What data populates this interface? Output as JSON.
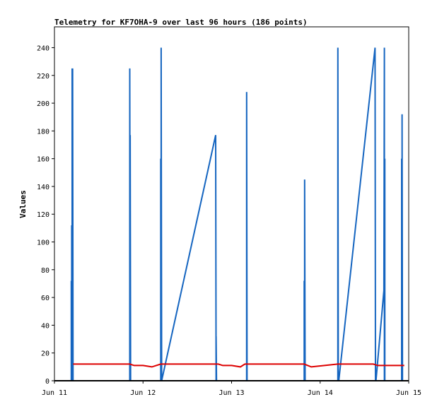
{
  "chart_data": {
    "type": "line",
    "title": "Telemetry for KF7OHA-9 over last 96 hours (186 points)",
    "xlabel": "",
    "ylabel": "Values",
    "x_ticks": [
      "Jun 11",
      "Jun 12",
      "Jun 13",
      "Jun 14",
      "Jun 15"
    ],
    "x_range_days": [
      11.0,
      15.0
    ],
    "y_ticks": [
      0,
      20,
      40,
      60,
      80,
      100,
      120,
      140,
      160,
      180,
      200,
      220,
      240
    ],
    "ylim": [
      0,
      255
    ],
    "grid": false,
    "legend": "none",
    "series": [
      {
        "color": "#1565c0",
        "x_days": [
          11.19,
          11.19,
          11.195,
          11.195,
          11.2,
          11.2,
          11.205,
          11.205,
          11.21,
          11.85,
          11.85,
          11.855,
          11.855,
          11.86,
          11.86,
          12.2,
          12.2,
          12.205,
          12.205,
          12.21,
          12.82,
          12.82,
          12.825,
          12.825,
          12.83,
          13.17,
          13.17,
          13.175,
          13.82,
          13.82,
          13.825,
          13.825,
          13.83,
          14.2,
          14.2,
          14.205,
          14.205,
          14.21,
          14.62,
          14.62,
          14.625,
          14.625,
          14.63,
          14.72,
          14.72,
          14.725,
          14.725,
          14.73,
          14.73,
          14.735,
          14.92,
          14.92,
          14.925,
          14.925,
          14.93
        ],
        "values": [
          0,
          72,
          0,
          112,
          0,
          225,
          0,
          225,
          0,
          0,
          225,
          0,
          177,
          0,
          0,
          0,
          160,
          0,
          240,
          0,
          177,
          177,
          0,
          32,
          0,
          0,
          208,
          0,
          0,
          72,
          0,
          145,
          0,
          0,
          240,
          0,
          0,
          0,
          240,
          240,
          0,
          0,
          0,
          65,
          65,
          240,
          0,
          160,
          0,
          0,
          0,
          160,
          0,
          192,
          0
        ]
      },
      {
        "color": "#dd0000",
        "x_days": [
          11.21,
          11.85,
          11.9,
          12.0,
          12.1,
          12.2,
          12.85,
          12.9,
          13.0,
          13.1,
          13.15,
          13.82,
          13.9,
          14.2,
          14.6,
          14.65,
          14.95
        ],
        "values": [
          12,
          12,
          11,
          11,
          10,
          12,
          12,
          11,
          11,
          10,
          12,
          12,
          10,
          12,
          12,
          11,
          11
        ]
      }
    ]
  }
}
